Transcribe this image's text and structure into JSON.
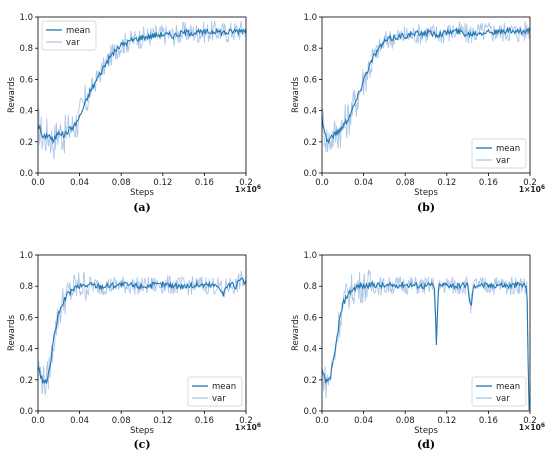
{
  "chart_data": [
    {
      "type": "line",
      "caption": "(a)",
      "xlabel": "Steps",
      "ylabel": "Rewards",
      "x_multiplier_label": "1e6",
      "xlim": [
        0.0,
        0.2
      ],
      "ylim": [
        0.0,
        1.0
      ],
      "xticks": [
        "0.0",
        "0.04",
        "0.08",
        "0.12",
        "0.16",
        "0.2"
      ],
      "yticks": [
        "0.0",
        "0.2",
        "0.4",
        "0.6",
        "0.8",
        "1.0"
      ],
      "legend_position": "upper-left",
      "colors": {
        "mean": "#1f77b4",
        "var": "#aec7e8"
      },
      "series": [
        {
          "name": "mean",
          "x": [
            0.0,
            0.005,
            0.01,
            0.015,
            0.02,
            0.025,
            0.03,
            0.035,
            0.04,
            0.045,
            0.05,
            0.055,
            0.06,
            0.065,
            0.07,
            0.075,
            0.08,
            0.09,
            0.1,
            0.11,
            0.12,
            0.13,
            0.14,
            0.15,
            0.16,
            0.17,
            0.18,
            0.19,
            0.2
          ],
          "y": [
            0.32,
            0.22,
            0.25,
            0.2,
            0.27,
            0.24,
            0.28,
            0.3,
            0.36,
            0.44,
            0.52,
            0.58,
            0.64,
            0.7,
            0.75,
            0.79,
            0.82,
            0.85,
            0.87,
            0.88,
            0.89,
            0.88,
            0.9,
            0.9,
            0.9,
            0.91,
            0.9,
            0.91,
            0.92
          ]
        },
        {
          "name": "var",
          "spread": 0.07
        }
      ]
    },
    {
      "type": "line",
      "caption": "(b)",
      "xlabel": "Steps",
      "ylabel": "Rewards",
      "x_multiplier_label": "1e6",
      "xlim": [
        0.0,
        0.2
      ],
      "ylim": [
        0.0,
        1.0
      ],
      "xticks": [
        "0.0",
        "0.04",
        "0.08",
        "0.12",
        "0.16",
        "0.2"
      ],
      "yticks": [
        "0.0",
        "0.2",
        "0.4",
        "0.6",
        "0.8",
        "1.0"
      ],
      "legend_position": "lower-right",
      "colors": {
        "mean": "#1f77b4",
        "var": "#aec7e8"
      },
      "series": [
        {
          "name": "mean",
          "x": [
            0.0,
            0.005,
            0.01,
            0.015,
            0.02,
            0.025,
            0.03,
            0.035,
            0.04,
            0.045,
            0.05,
            0.055,
            0.06,
            0.065,
            0.07,
            0.08,
            0.09,
            0.1,
            0.11,
            0.12,
            0.13,
            0.14,
            0.15,
            0.16,
            0.17,
            0.18,
            0.19,
            0.2
          ],
          "y": [
            0.35,
            0.2,
            0.24,
            0.26,
            0.3,
            0.35,
            0.42,
            0.5,
            0.6,
            0.68,
            0.75,
            0.8,
            0.84,
            0.86,
            0.87,
            0.88,
            0.89,
            0.9,
            0.89,
            0.9,
            0.91,
            0.89,
            0.9,
            0.91,
            0.9,
            0.91,
            0.9,
            0.92
          ]
        },
        {
          "name": "var",
          "spread": 0.07
        }
      ]
    },
    {
      "type": "line",
      "caption": "(c)",
      "xlabel": "Steps",
      "ylabel": "Rewards",
      "x_multiplier_label": "1e6",
      "xlim": [
        0.0,
        0.2
      ],
      "ylim": [
        0.0,
        1.0
      ],
      "xticks": [
        "0.0",
        "0.04",
        "0.08",
        "0.12",
        "0.16",
        "0.2"
      ],
      "yticks": [
        "0.0",
        "0.2",
        "0.4",
        "0.6",
        "0.8",
        "1.0"
      ],
      "legend_position": "lower-right",
      "colors": {
        "mean": "#1f77b4",
        "var": "#aec7e8"
      },
      "series": [
        {
          "name": "mean",
          "x": [
            0.0,
            0.004,
            0.008,
            0.012,
            0.016,
            0.02,
            0.024,
            0.028,
            0.032,
            0.036,
            0.04,
            0.05,
            0.06,
            0.08,
            0.1,
            0.12,
            0.14,
            0.16,
            0.175,
            0.178,
            0.181,
            0.185,
            0.19,
            0.195,
            0.2
          ],
          "y": [
            0.28,
            0.2,
            0.18,
            0.3,
            0.5,
            0.62,
            0.7,
            0.74,
            0.77,
            0.79,
            0.8,
            0.81,
            0.8,
            0.81,
            0.8,
            0.81,
            0.8,
            0.81,
            0.8,
            0.74,
            0.8,
            0.81,
            0.8,
            0.84,
            0.82
          ]
        },
        {
          "name": "var",
          "spread": 0.06
        }
      ]
    },
    {
      "type": "line",
      "caption": "(d)",
      "xlabel": "Steps",
      "ylabel": "Rewards",
      "x_multiplier_label": "1e6",
      "xlim": [
        0.0,
        0.2
      ],
      "ylim": [
        0.0,
        1.0
      ],
      "xticks": [
        "0.0",
        "0.04",
        "0.08",
        "0.12",
        "0.16",
        "0.2"
      ],
      "yticks": [
        "0.0",
        "0.2",
        "0.4",
        "0.6",
        "0.8",
        "1.0"
      ],
      "legend_position": "lower-right",
      "colors": {
        "mean": "#1f77b4",
        "var": "#aec7e8"
      },
      "series": [
        {
          "name": "mean",
          "x": [
            0.0,
            0.004,
            0.008,
            0.012,
            0.016,
            0.02,
            0.024,
            0.028,
            0.032,
            0.036,
            0.04,
            0.05,
            0.06,
            0.08,
            0.1,
            0.108,
            0.11,
            0.112,
            0.12,
            0.13,
            0.14,
            0.143,
            0.146,
            0.15,
            0.16,
            0.17,
            0.18,
            0.19,
            0.197,
            0.199,
            0.2
          ],
          "y": [
            0.25,
            0.18,
            0.22,
            0.35,
            0.55,
            0.68,
            0.74,
            0.77,
            0.79,
            0.8,
            0.8,
            0.81,
            0.8,
            0.81,
            0.8,
            0.81,
            0.42,
            0.8,
            0.81,
            0.8,
            0.81,
            0.66,
            0.8,
            0.81,
            0.8,
            0.81,
            0.8,
            0.81,
            0.8,
            0.02,
            0.02
          ]
        },
        {
          "name": "var",
          "spread": 0.06
        }
      ]
    }
  ]
}
